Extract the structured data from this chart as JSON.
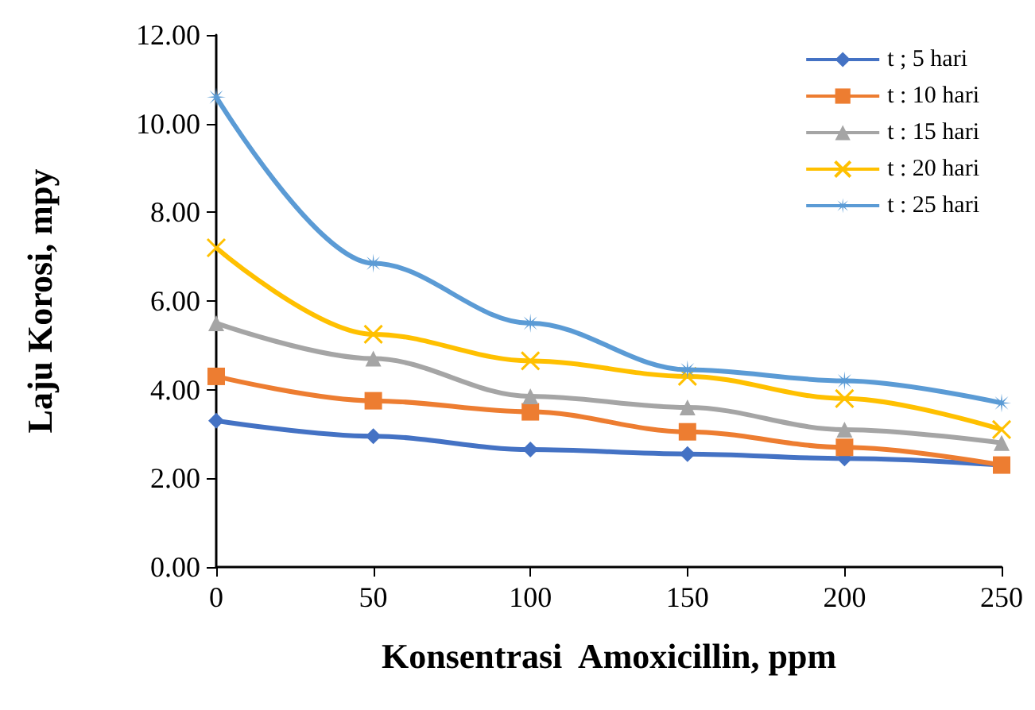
{
  "chart_data": {
    "type": "line",
    "xlabel": "Konsentrasi  Amoxicillin, ppm",
    "ylabel": "Laju Korosi, mpy",
    "x": [
      0,
      50,
      100,
      150,
      200,
      250
    ],
    "xlim": [
      0,
      250
    ],
    "xticks": [
      0,
      50,
      100,
      150,
      200,
      250
    ],
    "ylim": [
      0,
      12
    ],
    "yticks": [
      {
        "value": 0,
        "label": "0.00"
      },
      {
        "value": 2,
        "label": "2.00"
      },
      {
        "value": 4,
        "label": "4.00"
      },
      {
        "value": 6,
        "label": "6.00"
      },
      {
        "value": 8,
        "label": "8.00"
      },
      {
        "value": 10,
        "label": "10.00"
      },
      {
        "value": 12,
        "label": "12.00"
      }
    ],
    "grid": false,
    "legend": "top right",
    "line_style": "solid",
    "series": [
      {
        "name": "t ; 5 hari",
        "color": "#4472c4",
        "marker": "diamond",
        "values": [
          3.3,
          2.95,
          2.65,
          2.55,
          2.45,
          2.3
        ]
      },
      {
        "name": "t : 10 hari",
        "color": "#ed7d31",
        "marker": "square",
        "values": [
          4.3,
          3.75,
          3.5,
          3.05,
          2.7,
          2.3
        ]
      },
      {
        "name": "t : 15 hari",
        "color": "#a5a5a5",
        "marker": "triangle",
        "values": [
          5.5,
          4.7,
          3.85,
          3.6,
          3.1,
          2.8
        ]
      },
      {
        "name": "t : 20 hari",
        "color": "#ffc000",
        "marker": "cross",
        "values": [
          7.2,
          5.25,
          4.65,
          4.3,
          3.8,
          3.1
        ]
      },
      {
        "name": "t : 25 hari",
        "color": "#5b9bd5",
        "marker": "star",
        "values": [
          10.6,
          6.85,
          5.5,
          4.45,
          4.2,
          3.7
        ]
      }
    ]
  }
}
